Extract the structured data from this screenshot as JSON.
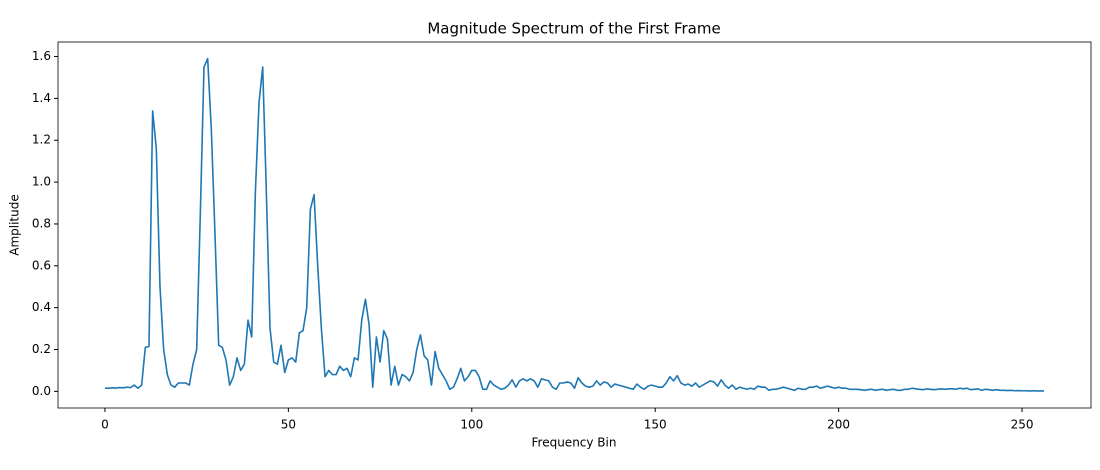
{
  "chart_data": {
    "type": "line",
    "title": "Magnitude Spectrum of the First Frame",
    "x_label": "Frequency Bin",
    "y_label": "Amplitude",
    "color": "#1f77b4",
    "x": [
      0,
      1,
      2,
      3,
      4,
      5,
      6,
      7,
      8,
      9,
      10,
      11,
      12,
      13,
      14,
      15,
      16,
      17,
      18,
      19,
      20,
      21,
      22,
      23,
      24,
      25,
      26,
      27,
      28,
      29,
      30,
      31,
      32,
      33,
      34,
      35,
      36,
      37,
      38,
      39,
      40,
      41,
      42,
      43,
      44,
      45,
      46,
      47,
      48,
      49,
      50,
      51,
      52,
      53,
      54,
      55,
      56,
      57,
      58,
      59,
      60,
      61,
      62,
      63,
      64,
      65,
      66,
      67,
      68,
      69,
      70,
      71,
      72,
      73,
      74,
      75,
      76,
      77,
      78,
      79,
      80,
      81,
      82,
      83,
      84,
      85,
      86,
      87,
      88,
      89,
      90,
      91,
      92,
      93,
      94,
      95,
      96,
      97,
      98,
      99,
      100,
      101,
      102,
      103,
      104,
      105,
      106,
      107,
      108,
      109,
      110,
      111,
      112,
      113,
      114,
      115,
      116,
      117,
      118,
      119,
      120,
      121,
      122,
      123,
      124,
      125,
      126,
      127,
      128,
      129,
      130,
      131,
      132,
      133,
      134,
      135,
      136,
      137,
      138,
      139,
      140,
      141,
      142,
      143,
      144,
      145,
      146,
      147,
      148,
      149,
      150,
      151,
      152,
      153,
      154,
      155,
      156,
      157,
      158,
      159,
      160,
      161,
      162,
      163,
      164,
      165,
      166,
      167,
      168,
      169,
      170,
      171,
      172,
      173,
      174,
      175,
      176,
      177,
      178,
      179,
      180,
      181,
      182,
      183,
      184,
      185,
      186,
      187,
      188,
      189,
      190,
      191,
      192,
      193,
      194,
      195,
      196,
      197,
      198,
      199,
      200,
      201,
      202,
      203,
      204,
      205,
      206,
      207,
      208,
      209,
      210,
      211,
      212,
      213,
      214,
      215,
      216,
      217,
      218,
      219,
      220,
      221,
      222,
      223,
      224,
      225,
      226,
      227,
      228,
      229,
      230,
      231,
      232,
      233,
      234,
      235,
      236,
      237,
      238,
      239,
      240,
      241,
      242,
      243,
      244,
      245,
      246,
      247,
      248,
      249,
      250,
      251,
      252,
      253,
      254,
      255,
      256
    ],
    "values": [
      0.015,
      0.015,
      0.017,
      0.016,
      0.018,
      0.017,
      0.02,
      0.018,
      0.03,
      0.015,
      0.03,
      0.21,
      0.215,
      1.34,
      1.16,
      0.5,
      0.2,
      0.08,
      0.03,
      0.02,
      0.04,
      0.04,
      0.04,
      0.03,
      0.13,
      0.2,
      0.85,
      1.55,
      1.59,
      1.25,
      0.75,
      0.22,
      0.21,
      0.15,
      0.03,
      0.07,
      0.16,
      0.1,
      0.13,
      0.34,
      0.26,
      0.95,
      1.38,
      1.55,
      0.95,
      0.3,
      0.14,
      0.13,
      0.22,
      0.09,
      0.15,
      0.16,
      0.14,
      0.28,
      0.29,
      0.4,
      0.87,
      0.94,
      0.6,
      0.3,
      0.07,
      0.1,
      0.08,
      0.08,
      0.12,
      0.1,
      0.11,
      0.07,
      0.16,
      0.15,
      0.34,
      0.44,
      0.32,
      0.02,
      0.26,
      0.14,
      0.29,
      0.25,
      0.03,
      0.12,
      0.03,
      0.08,
      0.07,
      0.05,
      0.09,
      0.2,
      0.27,
      0.17,
      0.15,
      0.03,
      0.19,
      0.11,
      0.08,
      0.05,
      0.01,
      0.02,
      0.06,
      0.11,
      0.05,
      0.07,
      0.1,
      0.1,
      0.07,
      0.01,
      0.01,
      0.05,
      0.03,
      0.02,
      0.01,
      0.015,
      0.03,
      0.055,
      0.02,
      0.05,
      0.06,
      0.05,
      0.06,
      0.05,
      0.02,
      0.06,
      0.055,
      0.05,
      0.02,
      0.01,
      0.04,
      0.04,
      0.045,
      0.04,
      0.015,
      0.065,
      0.04,
      0.025,
      0.02,
      0.025,
      0.05,
      0.03,
      0.045,
      0.04,
      0.02,
      0.035,
      0.03,
      0.025,
      0.02,
      0.015,
      0.01,
      0.035,
      0.02,
      0.01,
      0.025,
      0.03,
      0.025,
      0.02,
      0.02,
      0.04,
      0.07,
      0.05,
      0.075,
      0.04,
      0.03,
      0.035,
      0.025,
      0.04,
      0.02,
      0.03,
      0.04,
      0.05,
      0.045,
      0.025,
      0.055,
      0.03,
      0.015,
      0.03,
      0.01,
      0.02,
      0.015,
      0.01,
      0.015,
      0.01,
      0.025,
      0.02,
      0.02,
      0.005,
      0.01,
      0.01,
      0.015,
      0.02,
      0.015,
      0.01,
      0.005,
      0.015,
      0.01,
      0.01,
      0.02,
      0.02,
      0.025,
      0.015,
      0.02,
      0.025,
      0.02,
      0.015,
      0.02,
      0.015,
      0.015,
      0.01,
      0.01,
      0.01,
      0.008,
      0.005,
      0.008,
      0.01,
      0.005,
      0.008,
      0.01,
      0.005,
      0.008,
      0.01,
      0.005,
      0.005,
      0.01,
      0.01,
      0.015,
      0.012,
      0.01,
      0.008,
      0.012,
      0.01,
      0.008,
      0.01,
      0.012,
      0.01,
      0.012,
      0.012,
      0.01,
      0.015,
      0.012,
      0.015,
      0.008,
      0.01,
      0.012,
      0.005,
      0.01,
      0.008,
      0.005,
      0.008,
      0.005,
      0.005,
      0.004,
      0.005,
      0.003,
      0.004,
      0.003,
      0.003,
      0.002,
      0.003,
      0.002,
      0.002,
      0.002
    ],
    "xlim": [
      -12.8,
      268.8
    ],
    "xticks": [
      0,
      50,
      100,
      150,
      200,
      250
    ],
    "ylim": [
      -0.0795,
      1.6695
    ],
    "yticks": [
      {
        "value": 0,
        "label": "0.0"
      },
      0.2,
      0.4,
      0.6,
      0.8,
      {
        "value": 1,
        "label": "1.0"
      },
      1.2,
      1.4,
      1.6
    ]
  }
}
